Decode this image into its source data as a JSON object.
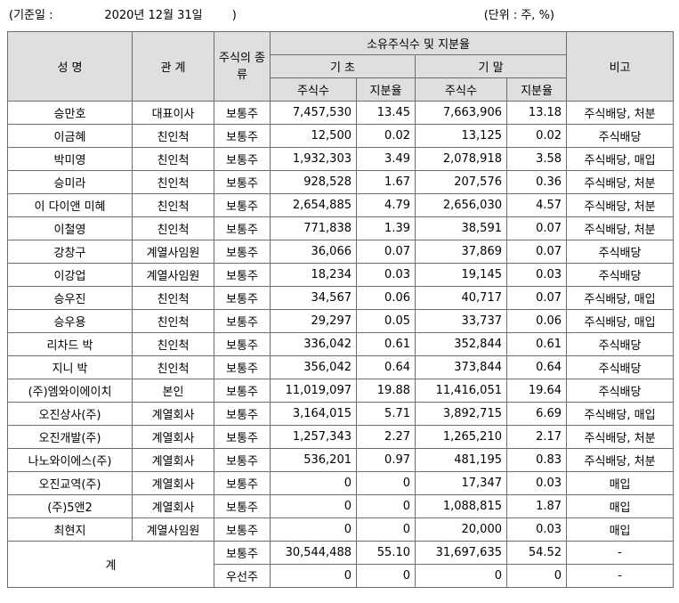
{
  "header": {
    "date_text": "(기준일 :              2020년 12월 31일        )",
    "unit_text": "(단위 : 주, %)"
  },
  "columns": {
    "name": "성 명",
    "relation": "관 계",
    "stock_type": "주식의 종류",
    "ownership": "소유주식수 및 지분율",
    "begin": "기 초",
    "end": "기 말",
    "shares": "주식수",
    "ratio": "지분율",
    "note": "비고"
  },
  "rows": [
    {
      "name": "승만호",
      "relation": "대표이사",
      "type": "보통주",
      "begin_shares": "7,457,530",
      "begin_ratio": "13.45",
      "end_shares": "7,663,906",
      "end_ratio": "13.18",
      "note": "주식배당, 처분"
    },
    {
      "name": "이금혜",
      "relation": "친인척",
      "type": "보통주",
      "begin_shares": "12,500",
      "begin_ratio": "0.02",
      "end_shares": "13,125",
      "end_ratio": "0.02",
      "note": "주식배당"
    },
    {
      "name": "박미영",
      "relation": "친인척",
      "type": "보통주",
      "begin_shares": "1,932,303",
      "begin_ratio": "3.49",
      "end_shares": "2,078,918",
      "end_ratio": "3.58",
      "note": "주식배당, 매입"
    },
    {
      "name": "승미라",
      "relation": "친인척",
      "type": "보통주",
      "begin_shares": "928,528",
      "begin_ratio": "1.67",
      "end_shares": "207,576",
      "end_ratio": "0.36",
      "note": "주식배당, 처분"
    },
    {
      "name": "이 다이앤 미혜",
      "relation": "친인척",
      "type": "보통주",
      "begin_shares": "2,654,885",
      "begin_ratio": "4.79",
      "end_shares": "2,656,030",
      "end_ratio": "4.57",
      "note": "주식배당, 처분"
    },
    {
      "name": "이철영",
      "relation": "친인척",
      "type": "보통주",
      "begin_shares": "771,838",
      "begin_ratio": "1.39",
      "end_shares": "38,591",
      "end_ratio": "0.07",
      "note": "주식배당, 처분"
    },
    {
      "name": "강창구",
      "relation": "계열사임원",
      "type": "보통주",
      "begin_shares": "36,066",
      "begin_ratio": "0.07",
      "end_shares": "37,869",
      "end_ratio": "0.07",
      "note": "주식배당"
    },
    {
      "name": "이강업",
      "relation": "계열사임원",
      "type": "보통주",
      "begin_shares": "18,234",
      "begin_ratio": "0.03",
      "end_shares": "19,145",
      "end_ratio": "0.03",
      "note": "주식배당"
    },
    {
      "name": "승우진",
      "relation": "친인척",
      "type": "보통주",
      "begin_shares": "34,567",
      "begin_ratio": "0.06",
      "end_shares": "40,717",
      "end_ratio": "0.07",
      "note": "주식배당, 매입"
    },
    {
      "name": "승우용",
      "relation": "친인척",
      "type": "보통주",
      "begin_shares": "29,297",
      "begin_ratio": "0.05",
      "end_shares": "33,737",
      "end_ratio": "0.06",
      "note": "주식배당, 매입"
    },
    {
      "name": "리차드 박",
      "relation": "친인척",
      "type": "보통주",
      "begin_shares": "336,042",
      "begin_ratio": "0.61",
      "end_shares": "352,844",
      "end_ratio": "0.61",
      "note": "주식배당"
    },
    {
      "name": "지니 박",
      "relation": "친인척",
      "type": "보통주",
      "begin_shares": "356,042",
      "begin_ratio": "0.64",
      "end_shares": "373,844",
      "end_ratio": "0.64",
      "note": "주식배당"
    },
    {
      "name": "(주)엠와이에이치",
      "relation": "본인",
      "type": "보통주",
      "begin_shares": "11,019,097",
      "begin_ratio": "19.88",
      "end_shares": "11,416,051",
      "end_ratio": "19.64",
      "note": "주식배당"
    },
    {
      "name": "오진상사(주)",
      "relation": "계열회사",
      "type": "보통주",
      "begin_shares": "3,164,015",
      "begin_ratio": "5.71",
      "end_shares": "3,892,715",
      "end_ratio": "6.69",
      "note": "주식배당, 매입"
    },
    {
      "name": "오진개발(주)",
      "relation": "계열회사",
      "type": "보통주",
      "begin_shares": "1,257,343",
      "begin_ratio": "2.27",
      "end_shares": "1,265,210",
      "end_ratio": "2.17",
      "note": "주식배당, 처분"
    },
    {
      "name": "나노와이에스(주)",
      "relation": "계열회사",
      "type": "보통주",
      "begin_shares": "536,201",
      "begin_ratio": "0.97",
      "end_shares": "481,195",
      "end_ratio": "0.83",
      "note": "주식배당, 처분"
    },
    {
      "name": "오진교역(주)",
      "relation": "계열회사",
      "type": "보통주",
      "begin_shares": "0",
      "begin_ratio": "0",
      "end_shares": "17,347",
      "end_ratio": "0.03",
      "note": "매입"
    },
    {
      "name": "(주)5앤2",
      "relation": "계열회사",
      "type": "보통주",
      "begin_shares": "0",
      "begin_ratio": "0",
      "end_shares": "1,088,815",
      "end_ratio": "1.87",
      "note": "매입"
    },
    {
      "name": "최현지",
      "relation": "계열사임원",
      "type": "보통주",
      "begin_shares": "0",
      "begin_ratio": "0",
      "end_shares": "20,000",
      "end_ratio": "0.03",
      "note": "매입"
    }
  ],
  "total": {
    "label": "계",
    "rows": [
      {
        "type": "보통주",
        "begin_shares": "30,544,488",
        "begin_ratio": "55.10",
        "end_shares": "31,697,635",
        "end_ratio": "54.52",
        "note": "-"
      },
      {
        "type": "우선주",
        "begin_shares": "0",
        "begin_ratio": "0",
        "end_shares": "0",
        "end_ratio": "0",
        "note": "-"
      }
    ]
  }
}
